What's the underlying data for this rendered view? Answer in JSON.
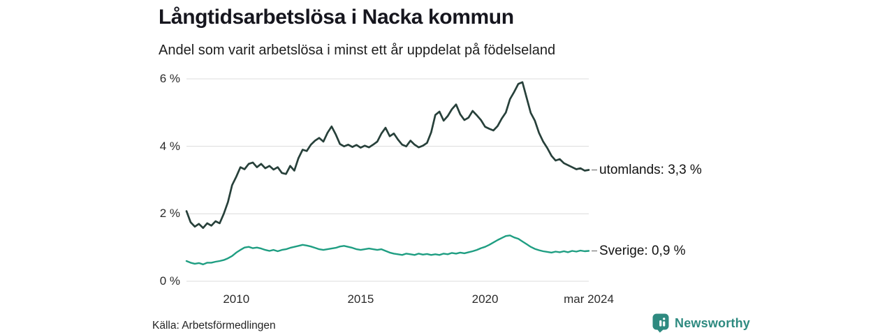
{
  "footer": {
    "source": "Källa: Arbetsförmedlingen",
    "brand": "Newsworthy"
  },
  "colors": {
    "utomlands_line": "#27403a",
    "sverige_line": "#1f9e82",
    "grid": "#dcdcdc",
    "end_tick_dash": "#8c8c8c",
    "brand_teal": "#2e8a80",
    "text_dark": "#16161e"
  },
  "icons": {
    "brand_logo": "newsworthy-barchart-pin-icon"
  },
  "chart_data": {
    "type": "line",
    "title": "Långtidsarbetslösa i Nacka kommun",
    "subtitle": "Andel som varit arbetslösa i minst ett år uppdelat på födelseland",
    "unit": "%",
    "grid": true,
    "legend_position": "right-end-labels",
    "x_axis": {
      "start": 2008.0,
      "end": 2024.1667,
      "step_years": 0.1666667,
      "ticks": [
        {
          "value": 2010,
          "label": "2010"
        },
        {
          "value": 2015,
          "label": "2015"
        },
        {
          "value": 2020,
          "label": "2020"
        },
        {
          "value": 2024.1667,
          "label": "mar 2024"
        }
      ]
    },
    "y_axis": {
      "min": 0,
      "max": 6,
      "ticks": [
        {
          "value": 0,
          "label": "0 %"
        },
        {
          "value": 2,
          "label": "2 %"
        },
        {
          "value": 4,
          "label": "4 %"
        },
        {
          "value": 6,
          "label": "6 %"
        }
      ]
    },
    "series": [
      {
        "id": "utomlands",
        "name": "utomlands",
        "end_label": "utomlands: 3,3 %",
        "end_value": 3.3,
        "color": "#27403a",
        "values": [
          2.08,
          1.75,
          1.62,
          1.7,
          1.58,
          1.72,
          1.65,
          1.78,
          1.72,
          2.0,
          2.35,
          2.85,
          3.1,
          3.38,
          3.32,
          3.48,
          3.52,
          3.38,
          3.48,
          3.35,
          3.42,
          3.31,
          3.38,
          3.21,
          3.18,
          3.42,
          3.28,
          3.65,
          3.9,
          3.86,
          4.05,
          4.17,
          4.25,
          4.14,
          4.4,
          4.59,
          4.35,
          4.07,
          4.0,
          4.05,
          3.98,
          4.04,
          3.96,
          4.02,
          3.97,
          4.05,
          4.14,
          4.38,
          4.55,
          4.3,
          4.38,
          4.2,
          4.05,
          4.0,
          4.17,
          4.05,
          3.97,
          4.02,
          4.1,
          4.41,
          4.93,
          5.03,
          4.76,
          4.9,
          5.1,
          5.24,
          4.95,
          4.78,
          4.85,
          5.05,
          4.92,
          4.78,
          4.58,
          4.52,
          4.47,
          4.6,
          4.82,
          5.0,
          5.4,
          5.61,
          5.85,
          5.9,
          5.45,
          4.99,
          4.76,
          4.4,
          4.14,
          3.95,
          3.72,
          3.58,
          3.62,
          3.5,
          3.44,
          3.38,
          3.32,
          3.35,
          3.28,
          3.3
        ]
      },
      {
        "id": "sverige",
        "name": "Sverige",
        "end_label": "Sverige: 0,9 %",
        "end_value": 0.9,
        "color": "#1f9e82",
        "values": [
          0.6,
          0.55,
          0.52,
          0.54,
          0.5,
          0.55,
          0.55,
          0.58,
          0.6,
          0.63,
          0.68,
          0.75,
          0.85,
          0.93,
          1.0,
          1.02,
          0.98,
          1.0,
          0.97,
          0.93,
          0.9,
          0.93,
          0.89,
          0.93,
          0.95,
          0.99,
          1.02,
          1.05,
          1.08,
          1.06,
          1.03,
          0.99,
          0.95,
          0.93,
          0.95,
          0.97,
          0.99,
          1.03,
          1.05,
          1.02,
          0.99,
          0.95,
          0.93,
          0.95,
          0.97,
          0.95,
          0.93,
          0.95,
          0.9,
          0.85,
          0.82,
          0.8,
          0.78,
          0.82,
          0.8,
          0.78,
          0.82,
          0.79,
          0.81,
          0.78,
          0.8,
          0.78,
          0.82,
          0.8,
          0.84,
          0.82,
          0.85,
          0.83,
          0.86,
          0.89,
          0.93,
          0.98,
          1.02,
          1.08,
          1.15,
          1.22,
          1.28,
          1.34,
          1.36,
          1.3,
          1.26,
          1.18,
          1.1,
          1.02,
          0.96,
          0.92,
          0.89,
          0.87,
          0.85,
          0.88,
          0.86,
          0.89,
          0.86,
          0.9,
          0.88,
          0.91,
          0.89,
          0.9
        ]
      }
    ]
  }
}
